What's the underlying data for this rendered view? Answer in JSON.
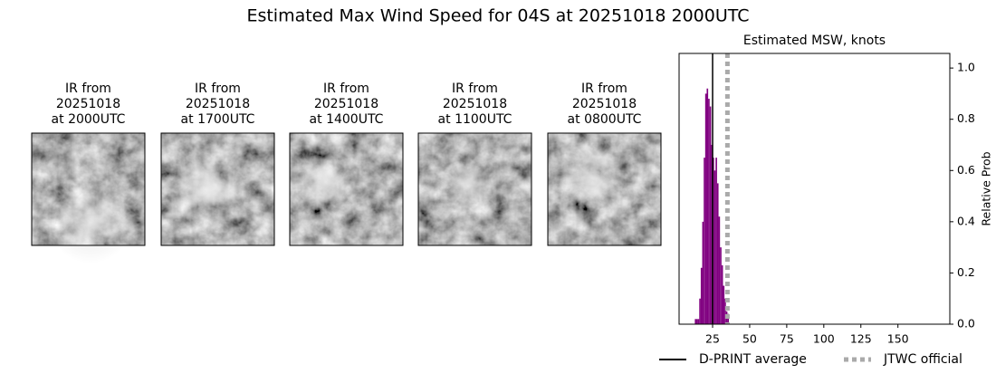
{
  "title": "Estimated Max Wind Speed for 04S at 20251018 2000UTC",
  "panels": [
    {
      "lines": [
        "IR from",
        "20251018",
        "at 2000UTC"
      ]
    },
    {
      "lines": [
        "IR from",
        "20251018",
        "at 1700UTC"
      ]
    },
    {
      "lines": [
        "IR from",
        "20251018",
        "at 1400UTC"
      ]
    },
    {
      "lines": [
        "IR from",
        "20251018",
        "at 1100UTC"
      ]
    },
    {
      "lines": [
        "IR from",
        "20251018",
        "at 0800UTC"
      ]
    }
  ],
  "chart_data": {
    "type": "histogram",
    "title": "Estimated MSW, knots",
    "y_label": "Relative Prob",
    "bins": [
      13,
      14,
      15,
      16,
      17,
      18,
      19,
      20,
      21,
      22,
      23,
      24,
      25,
      26,
      27,
      28,
      29,
      30,
      31,
      32,
      33,
      34,
      35,
      36
    ],
    "values": [
      0.02,
      0.02,
      0.02,
      0.1,
      0.22,
      0.4,
      0.65,
      0.9,
      0.92,
      0.88,
      0.85,
      0.7,
      0.65,
      0.6,
      0.65,
      0.55,
      0.42,
      0.3,
      0.23,
      0.15,
      0.1,
      0.05,
      0.04
    ],
    "color": "#800080",
    "lines": [
      {
        "name": "D-PRINT average",
        "value": 25,
        "color": "#000000",
        "dashed": false
      },
      {
        "name": "JTWC official",
        "value": 35,
        "color": "#aaaaaa",
        "dashed": true
      }
    ],
    "xlim": [
      2.4,
      185
    ],
    "ylim": [
      0,
      1.057
    ],
    "xticks": [
      25,
      50,
      75,
      100,
      125,
      150
    ],
    "yticks": [
      {
        "value": 0,
        "label": "0.0"
      },
      {
        "value": 0.2,
        "label": "0.2"
      },
      {
        "value": 0.4,
        "label": "0.4"
      },
      {
        "value": 0.6,
        "label": "0.6"
      },
      {
        "value": 0.8,
        "label": "0.8"
      },
      {
        "value": 1.0,
        "label": "1.0"
      }
    ]
  }
}
